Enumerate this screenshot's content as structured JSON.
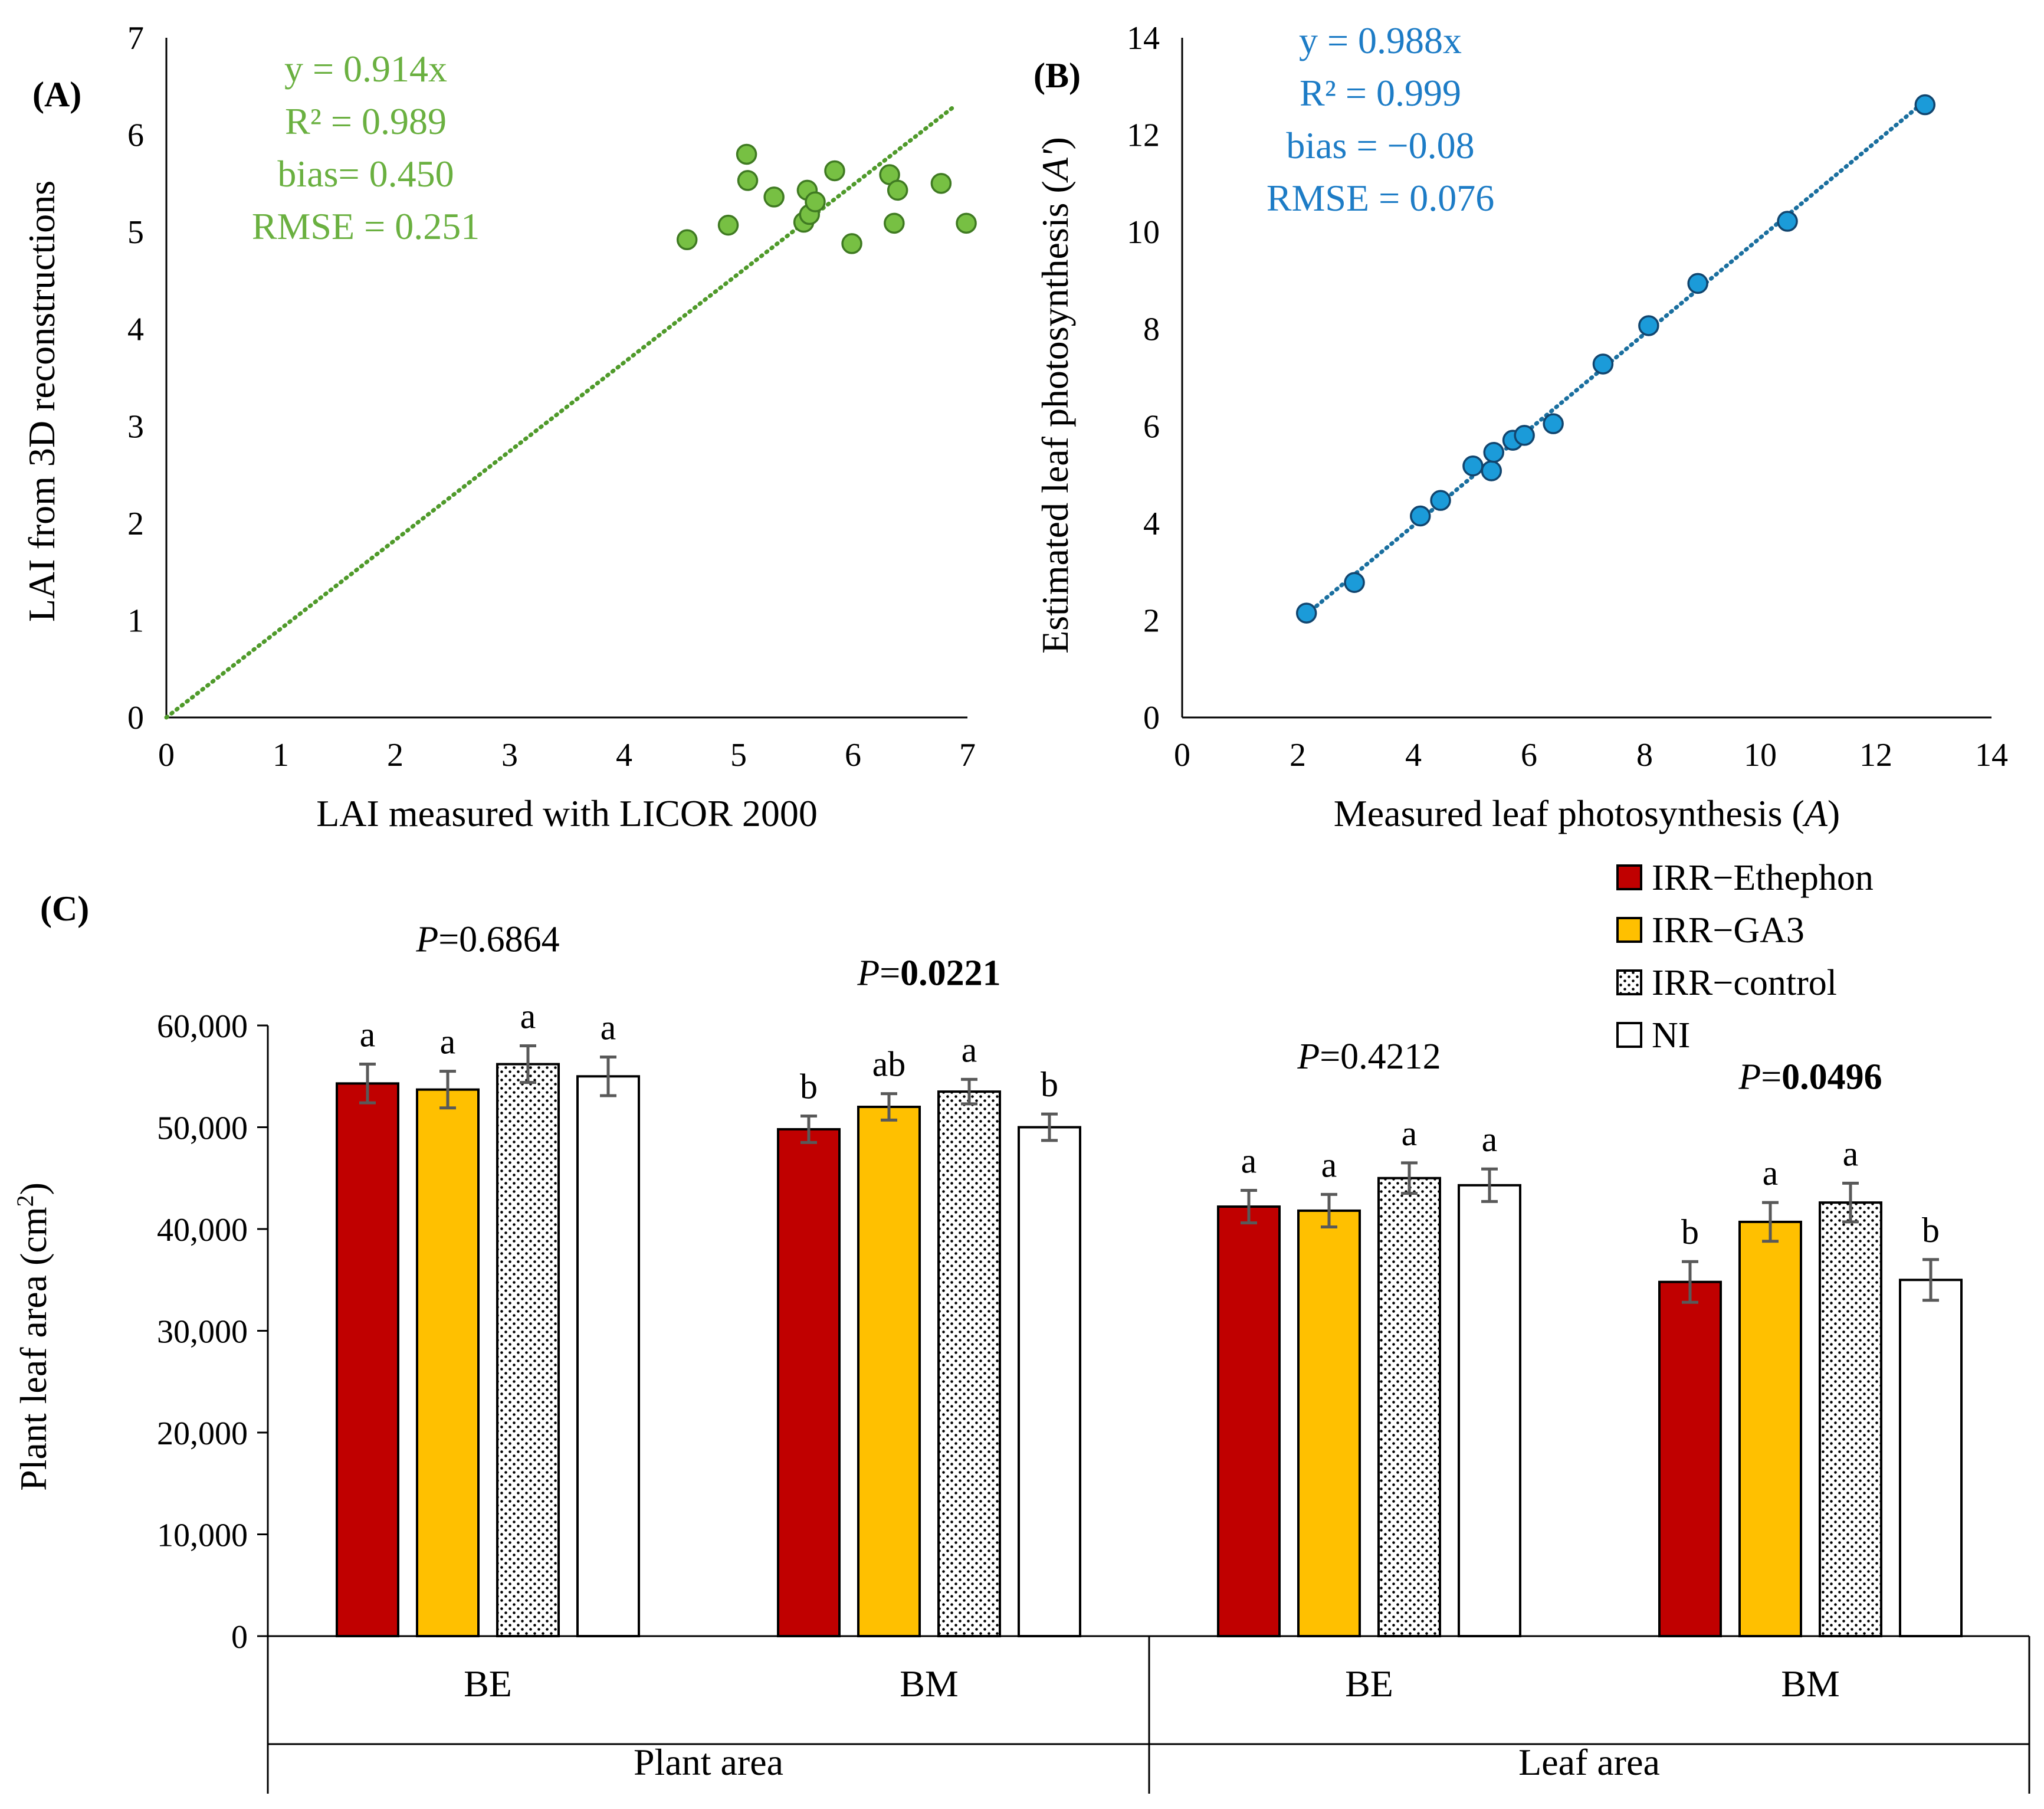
{
  "colors": {
    "scatter_a": "#77c043",
    "scatter_a_stroke": "#3f7a22",
    "trend_a": "#4f9a2a",
    "text_a": "#6ab040",
    "scatter_b": "#1b9bd9",
    "scatter_b_stroke": "#12456e",
    "trend_b": "#1a6f9f",
    "text_b": "#1d7cc6",
    "ethephon": "#c00000",
    "ga3": "#ffc000",
    "control": "#ffffff",
    "ni": "#ffffff",
    "errorbar": "#595959",
    "axis": "#000000"
  },
  "chart_data": [
    {
      "id": "A",
      "type": "scatter",
      "panel_label": "(A)",
      "xlabel": "LAI measured with LICOR 2000",
      "ylabel": "LAI from 3D reconstructions",
      "xlim": [
        0,
        7
      ],
      "ylim": [
        0,
        7
      ],
      "xticks": [
        0,
        1,
        2,
        3,
        4,
        5,
        6,
        7
      ],
      "yticks": [
        0,
        1,
        2,
        3,
        4,
        5,
        6,
        7
      ],
      "annotation": [
        "y = 0.914x",
        "R² = 0.989",
        "bias= 0.450",
        "RMSE = 0.251"
      ],
      "trendline": {
        "slope": 0.914,
        "x_from": 0,
        "x_to": 6.9
      },
      "points": [
        {
          "x": 4.55,
          "y": 4.92
        },
        {
          "x": 4.91,
          "y": 5.07
        },
        {
          "x": 5.07,
          "y": 5.8
        },
        {
          "x": 5.08,
          "y": 5.53
        },
        {
          "x": 5.31,
          "y": 5.36
        },
        {
          "x": 5.57,
          "y": 5.1
        },
        {
          "x": 5.6,
          "y": 5.43
        },
        {
          "x": 5.62,
          "y": 5.18
        },
        {
          "x": 5.67,
          "y": 5.31
        },
        {
          "x": 5.84,
          "y": 5.63
        },
        {
          "x": 5.99,
          "y": 4.88
        },
        {
          "x": 6.32,
          "y": 5.59
        },
        {
          "x": 6.36,
          "y": 5.09
        },
        {
          "x": 6.39,
          "y": 5.43
        },
        {
          "x": 6.77,
          "y": 5.5
        },
        {
          "x": 6.99,
          "y": 5.09
        }
      ]
    },
    {
      "id": "B",
      "type": "scatter",
      "panel_label": "(B)",
      "xlabel_main": "Measured leaf photosynthesis (",
      "xlabel_var": "A",
      "xlabel_end": ")",
      "ylabel_main": "Estimated leaf photosynthesis (",
      "ylabel_var": "A'",
      "ylabel_end": ")",
      "xlim": [
        0,
        14
      ],
      "ylim": [
        0,
        14
      ],
      "xticks": [
        0,
        2,
        4,
        6,
        8,
        10,
        12,
        14
      ],
      "yticks": [
        0,
        2,
        4,
        6,
        8,
        10,
        12,
        14
      ],
      "annotation": [
        "y = 0.988x",
        "R² = 0.999",
        "bias = −0.08",
        "RMSE =  0.076"
      ],
      "trendline": {
        "slope": 0.988,
        "x_from": 2.15,
        "x_to": 12.85
      },
      "points": [
        {
          "x": 2.15,
          "y": 2.15
        },
        {
          "x": 2.98,
          "y": 2.78
        },
        {
          "x": 4.12,
          "y": 4.15
        },
        {
          "x": 4.47,
          "y": 4.47
        },
        {
          "x": 5.03,
          "y": 5.18
        },
        {
          "x": 5.35,
          "y": 5.08
        },
        {
          "x": 5.39,
          "y": 5.46
        },
        {
          "x": 5.72,
          "y": 5.71
        },
        {
          "x": 5.92,
          "y": 5.81
        },
        {
          "x": 6.42,
          "y": 6.05
        },
        {
          "x": 7.28,
          "y": 7.28
        },
        {
          "x": 8.07,
          "y": 8.07
        },
        {
          "x": 8.92,
          "y": 8.94
        },
        {
          "x": 10.47,
          "y": 10.22
        },
        {
          "x": 12.85,
          "y": 12.62
        }
      ]
    },
    {
      "id": "C",
      "type": "bar",
      "panel_label": "(C)",
      "ylabel": "Plant leaf area (cm",
      "ylabel_sup": "2",
      "ylabel_end": ")",
      "ylim": [
        0,
        60000
      ],
      "yticks": [
        0,
        10000,
        20000,
        30000,
        40000,
        50000,
        60000
      ],
      "ytick_labels": [
        "0",
        "10,000",
        "20,000",
        "30,000",
        "40,000",
        "50,000",
        "60,000"
      ],
      "series": [
        {
          "name": "IRR−Ethephon",
          "color_key": "ethephon",
          "pattern": "solid"
        },
        {
          "name": "IRR−GA3",
          "color_key": "ga3",
          "pattern": "solid"
        },
        {
          "name": "IRR−control",
          "color_key": "control",
          "pattern": "dots"
        },
        {
          "name": "NI",
          "color_key": "ni",
          "pattern": "solid"
        }
      ],
      "groups": [
        {
          "category": "BE",
          "p_prefix": "P",
          "p_value": "=0.6864",
          "p_bold": false,
          "values": [
            54300,
            53700,
            56200,
            55000
          ],
          "errors": [
            1900,
            1800,
            1800,
            1900
          ],
          "letters": [
            "a",
            "a",
            "a",
            "a"
          ]
        },
        {
          "category": "BM",
          "p_prefix": "P",
          "p_value": "=",
          "p_bold_value": "0.0221",
          "p_bold": true,
          "values": [
            49800,
            52000,
            53500,
            50000
          ],
          "errors": [
            1300,
            1300,
            1200,
            1300
          ],
          "letters": [
            "b",
            "ab",
            "a",
            "b"
          ]
        },
        {
          "category": "BE",
          "p_prefix": "P",
          "p_value": "=0.4212",
          "p_bold": false,
          "values": [
            42200,
            41800,
            45000,
            44300
          ],
          "errors": [
            1600,
            1600,
            1500,
            1600
          ],
          "letters": [
            "a",
            "a",
            "a",
            "a"
          ]
        },
        {
          "category": "BM",
          "p_prefix": "P",
          "p_value": "=",
          "p_bold_value": "0.0496",
          "p_bold": true,
          "values": [
            34800,
            40700,
            42600,
            35000
          ],
          "errors": [
            2000,
            1900,
            1900,
            2000
          ],
          "letters": [
            "b",
            "a",
            "a",
            "b"
          ]
        }
      ],
      "supergroups": [
        "Plant area",
        "Leaf area"
      ]
    }
  ]
}
